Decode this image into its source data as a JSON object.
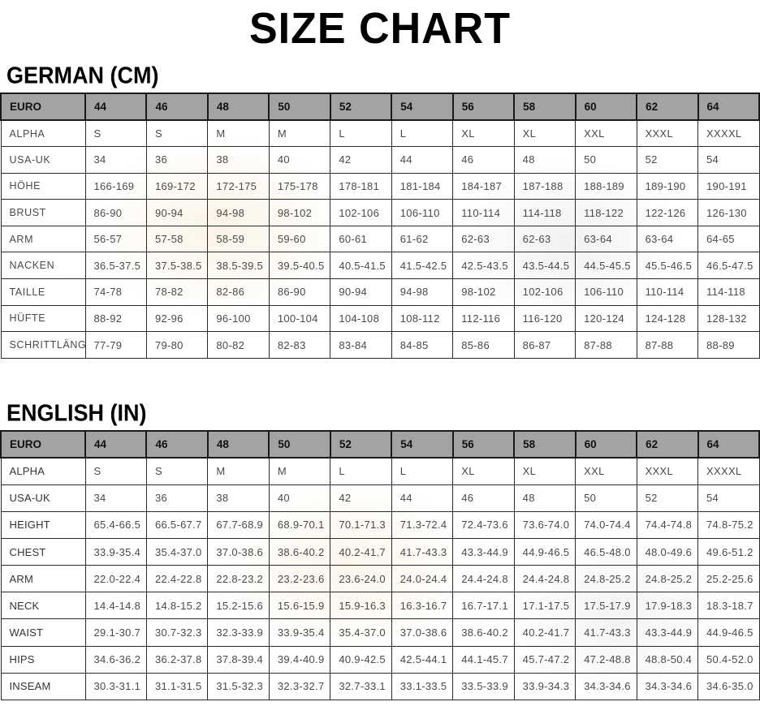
{
  "title": "SIZE CHART",
  "colors": {
    "header_bg": "#a3a3a3",
    "border": "#2a2a2a",
    "body_text": "#4a4a4a"
  },
  "tables": [
    {
      "heading": "GERMAN (CM)",
      "header": [
        "EURO",
        "44",
        "46",
        "48",
        "50",
        "52",
        "54",
        "56",
        "58",
        "60",
        "62",
        "64"
      ],
      "rows": [
        {
          "label": "ALPHA",
          "values": [
            "S",
            "S",
            "M",
            "M",
            "L",
            "L",
            "XL",
            "XL",
            "XXL",
            "XXXL",
            "XXXXL"
          ]
        },
        {
          "label": "USA-UK",
          "values": [
            "34",
            "36",
            "38",
            "40",
            "42",
            "44",
            "46",
            "48",
            "50",
            "52",
            "54"
          ]
        },
        {
          "label": "HÖHE",
          "values": [
            "166-169",
            "169-172",
            "172-175",
            "175-178",
            "178-181",
            "181-184",
            "184-187",
            "187-188",
            "188-189",
            "189-190",
            "190-191"
          ]
        },
        {
          "label": "BRUST",
          "values": [
            "86-90",
            "90-94",
            "94-98",
            "98-102",
            "102-106",
            "106-110",
            "110-114",
            "114-118",
            "118-122",
            "122-126",
            "126-130"
          ]
        },
        {
          "label": "ARM",
          "values": [
            "56-57",
            "57-58",
            "58-59",
            "59-60",
            "60-61",
            "61-62",
            "62-63",
            "62-63",
            "63-64",
            "63-64",
            "64-65"
          ]
        },
        {
          "label": "NACKEN",
          "values": [
            "36.5-37.5",
            "37.5-38.5",
            "38.5-39.5",
            "39.5-40.5",
            "40.5-41.5",
            "41.5-42.5",
            "42.5-43.5",
            "43.5-44.5",
            "44.5-45.5",
            "45.5-46.5",
            "46.5-47.5"
          ]
        },
        {
          "label": "TAILLE",
          "values": [
            "74-78",
            "78-82",
            "82-86",
            "86-90",
            "90-94",
            "94-98",
            "98-102",
            "102-106",
            "106-110",
            "110-114",
            "114-118"
          ]
        },
        {
          "label": "HÜFTE",
          "values": [
            "88-92",
            "92-96",
            "96-100",
            "100-104",
            "104-108",
            "108-112",
            "112-116",
            "116-120",
            "120-124",
            "124-128",
            "128-132"
          ]
        },
        {
          "label": "SCHRITTLÄNGE",
          "values": [
            "77-79",
            "79-80",
            "80-82",
            "82-83",
            "83-84",
            "84-85",
            "85-86",
            "86-87",
            "87-88",
            "87-88",
            "88-89"
          ]
        }
      ]
    },
    {
      "heading": "ENGLISH (IN)",
      "header": [
        "EURO",
        "44",
        "46",
        "48",
        "50",
        "52",
        "54",
        "56",
        "58",
        "60",
        "62",
        "64"
      ],
      "rows": [
        {
          "label": "ALPHA",
          "values": [
            "S",
            "S",
            "M",
            "M",
            "L",
            "L",
            "XL",
            "XL",
            "XXL",
            "XXXL",
            "XXXXL"
          ]
        },
        {
          "label": "USA-UK",
          "values": [
            "34",
            "36",
            "38",
            "40",
            "42",
            "44",
            "46",
            "48",
            "50",
            "52",
            "54"
          ]
        },
        {
          "label": "HEIGHT",
          "values": [
            "65.4-66.5",
            "66.5-67.7",
            "67.7-68.9",
            "68.9-70.1",
            "70.1-71.3",
            "71.3-72.4",
            "72.4-73.6",
            "73.6-74.0",
            "74.0-74.4",
            "74.4-74.8",
            "74.8-75.2"
          ]
        },
        {
          "label": "CHEST",
          "values": [
            "33.9-35.4",
            "35.4-37.0",
            "37.0-38.6",
            "38.6-40.2",
            "40.2-41.7",
            "41.7-43.3",
            "43.3-44.9",
            "44.9-46.5",
            "46.5-48.0",
            "48.0-49.6",
            "49.6-51.2"
          ]
        },
        {
          "label": "ARM",
          "values": [
            "22.0-22.4",
            "22.4-22.8",
            "22.8-23.2",
            "23.2-23.6",
            "23.6-24.0",
            "24.0-24.4",
            "24.4-24.8",
            "24.4-24.8",
            "24.8-25.2",
            "24.8-25.2",
            "25.2-25.6"
          ]
        },
        {
          "label": "NECK",
          "values": [
            "14.4-14.8",
            "14.8-15.2",
            "15.2-15.6",
            "15.6-15.9",
            "15.9-16.3",
            "16.3-16.7",
            "16.7-17.1",
            "17.1-17.5",
            "17.5-17.9",
            "17.9-18.3",
            "18.3-18.7"
          ]
        },
        {
          "label": "WAIST",
          "values": [
            "29.1-30.7",
            "30.7-32.3",
            "32.3-33.9",
            "33.9-35.4",
            "35.4-37.0",
            "37.0-38.6",
            "38.6-40.2",
            "40.2-41.7",
            "41.7-43.3",
            "43.3-44.9",
            "44.9-46.5"
          ]
        },
        {
          "label": "HIPS",
          "values": [
            "34.6-36.2",
            "36.2-37.8",
            "37.8-39.4",
            "39.4-40.9",
            "40.9-42.5",
            "42.5-44.1",
            "44.1-45.7",
            "45.7-47.2",
            "47.2-48.8",
            "48.8-50.4",
            "50.4-52.0"
          ]
        },
        {
          "label": "INSEAM",
          "values": [
            "30.3-31.1",
            "31.1-31.5",
            "31.5-32.3",
            "32.3-32.7",
            "32.7-33.1",
            "33.1-33.5",
            "33.5-33.9",
            "33.9-34.3",
            "34.3-34.6",
            "34.3-34.6",
            "34.6-35.0"
          ]
        }
      ]
    }
  ]
}
